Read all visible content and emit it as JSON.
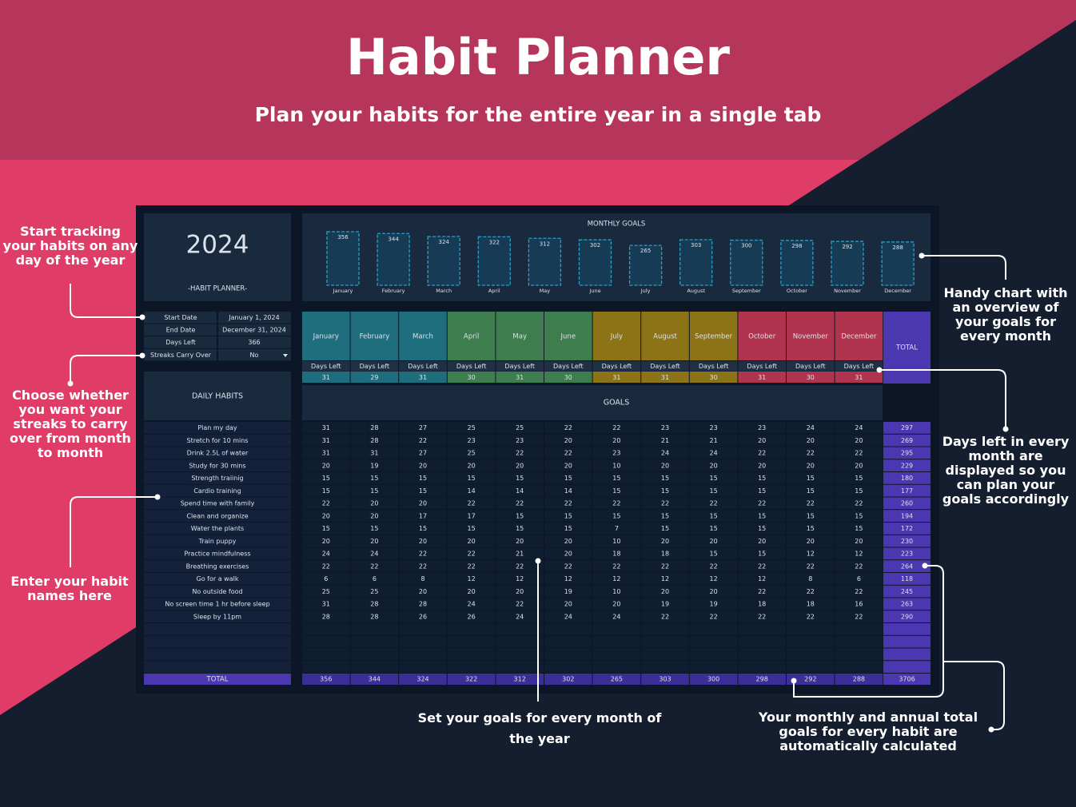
{
  "header": {
    "title": "Habit Planner",
    "subtitle": "Plan your habits for the entire year in a single tab"
  },
  "callouts": [
    "Start tracking your habits on any day of the year",
    "Choose whether you want your streaks to carry over from month to month",
    "Enter your habit names here",
    "Set your goals for every month of the year",
    "Your monthly and annual total goals for every habit are automatically calculated",
    "Days left in every month are displayed so you can plan your goals accordingly",
    "Handy chart with an overview of your goals for every month"
  ],
  "sheet": {
    "year": "2024",
    "planner_label": "-HABIT PLANNER-",
    "settings": [
      {
        "label": "Start Date",
        "value": "January 1, 2024"
      },
      {
        "label": "End Date",
        "value": "December 31, 2024"
      },
      {
        "label": "Days Left",
        "value": 366
      },
      {
        "label": "Streaks Carry Over",
        "value": "No"
      }
    ],
    "chart": {
      "type": "bar",
      "title": "MONTHLY GOALS",
      "categories": [
        "January",
        "February",
        "March",
        "April",
        "May",
        "June",
        "July",
        "August",
        "September",
        "October",
        "November",
        "December"
      ],
      "values": [
        356,
        344,
        324,
        322,
        312,
        302,
        265,
        303,
        300,
        298,
        292,
        288
      ],
      "color": "#2b9fc4"
    },
    "daily_habits_label": "DAILY HABITS",
    "goals_label": "GOALS",
    "days_left_label": "Days Left",
    "total_label": "TOTAL",
    "total_color": "#4b38b0",
    "months": [
      {
        "name": "January",
        "color": "#1f6e7e",
        "days_left": 31
      },
      {
        "name": "February",
        "color": "#1f6e7e",
        "days_left": 29
      },
      {
        "name": "March",
        "color": "#1f6e7e",
        "days_left": 31
      },
      {
        "name": "April",
        "color": "#3d7d4e",
        "days_left": 30
      },
      {
        "name": "May",
        "color": "#3d7d4e",
        "days_left": 31
      },
      {
        "name": "June",
        "color": "#3d7d4e",
        "days_left": 30
      },
      {
        "name": "July",
        "color": "#8c7317",
        "days_left": 31
      },
      {
        "name": "August",
        "color": "#8c7317",
        "days_left": 31
      },
      {
        "name": "September",
        "color": "#8c7317",
        "days_left": 30
      },
      {
        "name": "October",
        "color": "#b0344e",
        "days_left": 31
      },
      {
        "name": "November",
        "color": "#b0344e",
        "days_left": 30
      },
      {
        "name": "December",
        "color": "#b0344e",
        "days_left": 31
      }
    ],
    "habits": [
      {
        "name": "Plan my day",
        "goals": [
          31,
          28,
          27,
          25,
          25,
          22,
          22,
          23,
          23,
          23,
          24,
          24
        ],
        "total": 297
      },
      {
        "name": "Stretch for 10 mins",
        "goals": [
          31,
          28,
          22,
          23,
          23,
          20,
          20,
          21,
          21,
          20,
          20,
          20
        ],
        "total": 269
      },
      {
        "name": "Drink 2.5L of water",
        "goals": [
          31,
          31,
          27,
          25,
          22,
          22,
          23,
          24,
          24,
          22,
          22,
          22
        ],
        "total": 295
      },
      {
        "name": "Study for 30 mins",
        "goals": [
          20,
          19,
          20,
          20,
          20,
          20,
          10,
          20,
          20,
          20,
          20,
          20
        ],
        "total": 229
      },
      {
        "name": "Strength traiinig",
        "goals": [
          15,
          15,
          15,
          15,
          15,
          15,
          15,
          15,
          15,
          15,
          15,
          15
        ],
        "total": 180
      },
      {
        "name": "Cardio training",
        "goals": [
          15,
          15,
          15,
          14,
          14,
          14,
          15,
          15,
          15,
          15,
          15,
          15
        ],
        "total": 177
      },
      {
        "name": "Spend time with family",
        "goals": [
          22,
          20,
          20,
          22,
          22,
          22,
          22,
          22,
          22,
          22,
          22,
          22
        ],
        "total": 260
      },
      {
        "name": "Clean and organize",
        "goals": [
          20,
          20,
          17,
          17,
          15,
          15,
          15,
          15,
          15,
          15,
          15,
          15
        ],
        "total": 194
      },
      {
        "name": "Water the plants",
        "goals": [
          15,
          15,
          15,
          15,
          15,
          15,
          7,
          15,
          15,
          15,
          15,
          15
        ],
        "total": 172
      },
      {
        "name": "Train puppy",
        "goals": [
          20,
          20,
          20,
          20,
          20,
          20,
          10,
          20,
          20,
          20,
          20,
          20
        ],
        "total": 230
      },
      {
        "name": "Practice mindfulness",
        "goals": [
          24,
          24,
          22,
          22,
          21,
          20,
          18,
          18,
          15,
          15,
          12,
          12
        ],
        "total": 223
      },
      {
        "name": "Breathing exercises",
        "goals": [
          22,
          22,
          22,
          22,
          22,
          22,
          22,
          22,
          22,
          22,
          22,
          22
        ],
        "total": 264
      },
      {
        "name": "Go for a walk",
        "goals": [
          6,
          6,
          8,
          12,
          12,
          12,
          12,
          12,
          12,
          12,
          8,
          6
        ],
        "total": 118
      },
      {
        "name": "No outside food",
        "goals": [
          25,
          25,
          20,
          20,
          20,
          19,
          10,
          20,
          20,
          22,
          22,
          22
        ],
        "total": 245
      },
      {
        "name": "No screen time 1 hr before sleep",
        "goals": [
          31,
          28,
          28,
          24,
          22,
          20,
          20,
          19,
          19,
          18,
          18,
          16
        ],
        "total": 263
      },
      {
        "name": "Sleep by 11pm",
        "goals": [
          28,
          28,
          26,
          26,
          24,
          24,
          24,
          22,
          22,
          22,
          22,
          22
        ],
        "total": 290
      }
    ],
    "totals": {
      "label": "TOTAL",
      "months": [
        356,
        344,
        324,
        322,
        312,
        302,
        265,
        303,
        300,
        298,
        292,
        288
      ],
      "total": 3706
    }
  }
}
